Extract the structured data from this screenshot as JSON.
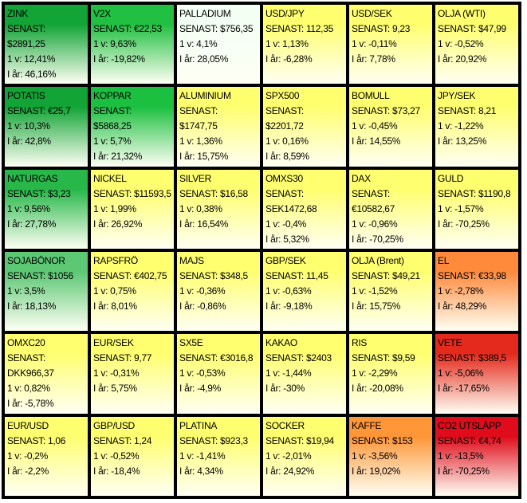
{
  "rows": [
    [
      {
        "name": "ZINK",
        "latest": "SENAST: $2891,25",
        "week": "1 v: 12,41%",
        "year": "I år: 46,16%",
        "color": "#12a436"
      },
      {
        "name": "V2X",
        "latest": "SENAST: €22,53",
        "week": "1 v: 9,63%",
        "year": "I år: -19,82%",
        "color": "#22c042"
      },
      {
        "name": "PALLADIUM",
        "latest": "SENAST: $756,35",
        "week": "1 v: 4,1%",
        "year": "I år: 28,05%",
        "color": "#f4fff4"
      },
      {
        "name": "USD/JPY",
        "latest": "SENAST: 112,35",
        "week": "1 v: 1,13%",
        "year": "I år: -6,28%",
        "color": "#ffff70"
      },
      {
        "name": "USD/SEK",
        "latest": "SENAST: 9,23",
        "week": "1 v: -0,11%",
        "year": "I år: 7,78%",
        "color": "#ffff70"
      },
      {
        "name": "OLJA (WTI)",
        "latest": "SENAST: $47,99",
        "week": "1 v: -0,52%",
        "year": "I år: 20,92%",
        "color": "#ffff70"
      }
    ],
    [
      {
        "name": "POTATIS",
        "latest": "SENAST: €25,7",
        "week": "1 v: 10,3%",
        "year": "I år: 42,8%",
        "color": "#12a436"
      },
      {
        "name": "KOPPAR",
        "latest": "SENAST: $5868,25",
        "week": "1 v: 5,7%",
        "year": "I år: 21,32%",
        "color": "#1cc040"
      },
      {
        "name": "ALUMINIUM",
        "latest": "SENAST: $1747,75",
        "week": "1 v: 1,36%",
        "year": "I år: 15,75%",
        "color": "#ffff70"
      },
      {
        "name": "SPX500",
        "latest": "SENAST: $2201,72",
        "week": "1 v: 0,16%",
        "year": "I år: 8,59%",
        "color": "#ffff70"
      },
      {
        "name": "BOMULL",
        "latest": "SENAST: $73,27",
        "week": "1 v: -0,45%",
        "year": "I år: 14,55%",
        "color": "#ffff70"
      },
      {
        "name": "JPY/SEK",
        "latest": "SENAST: 8,21",
        "week": "1 v: -1,22%",
        "year": "I år: 13,25%",
        "color": "#ffff70"
      }
    ],
    [
      {
        "name": "NATURGAS",
        "latest": "SENAST: $3,23",
        "week": "1 v: 9,56%",
        "year": "I år: 27,78%",
        "color": "#28b84a"
      },
      {
        "name": "NICKEL",
        "latest": "SENAST: $11593,5",
        "week": "1 v: 1,99%",
        "year": "I år: 26,92%",
        "color": "#ffff70"
      },
      {
        "name": "SILVER",
        "latest": "SENAST: $16,58",
        "week": "1 v: 0,38%",
        "year": "I år: 16,54%",
        "color": "#ffff70"
      },
      {
        "name": "OMXS30",
        "latest": "SENAST: SEK1472,68",
        "week": "1 v: -0,4%",
        "year": "I år: 5,32%",
        "color": "#ffff70"
      },
      {
        "name": "DAX",
        "latest": "SENAST: €10582,67",
        "week": "1 v: -0,96%",
        "year": "I år: -70,25%",
        "color": "#ffff70"
      },
      {
        "name": "GULD",
        "latest": "SENAST: $1190,8",
        "week": "1 v: -1,57%",
        "year": "I år: -70,25%",
        "color": "#ffff70"
      }
    ],
    [
      {
        "name": "SOJABÖNOR",
        "latest": "SENAST: $1056",
        "week": "1 v: 3,5%",
        "year": "I år: 18,13%",
        "color": "#5cc874"
      },
      {
        "name": "RAPSFRÖ",
        "latest": "SENAST: €402,75",
        "week": "1 v: 0,75%",
        "year": "I år: 8,01%",
        "color": "#ffff70"
      },
      {
        "name": "MAJS",
        "latest": "SENAST: $348,5",
        "week": "1 v: -0,36%",
        "year": "I år: -0,86%",
        "color": "#ffff70"
      },
      {
        "name": "GBP/SEK",
        "latest": "SENAST: 11,45",
        "week": "1 v: -0,63%",
        "year": "I år: -9,18%",
        "color": "#ffff70"
      },
      {
        "name": "OLJA (Brent)",
        "latest": "SENAST: $49,21",
        "week": "1 v: -1,52%",
        "year": "I år: 15,75%",
        "color": "#ffff70"
      },
      {
        "name": "EL",
        "latest": "SENAST: €33,98",
        "week": "1 v: -2,78%",
        "year": "I år: 48,29%",
        "color": "#ff8a3c"
      }
    ],
    [
      {
        "name": "OMXC20",
        "latest": "SENAST: DKK966,37",
        "week": "1 v: 0,82%",
        "year": "I år: -5,78%",
        "color": "#ffff70"
      },
      {
        "name": "EUR/SEK",
        "latest": "SENAST: 9,77",
        "week": "1 v: -0,31%",
        "year": "I år: 5,75%",
        "color": "#ffff70"
      },
      {
        "name": "SX5E",
        "latest": "SENAST: €3016,8",
        "week": "1 v: -0,53%",
        "year": "I år: -4,9%",
        "color": "#ffff70"
      },
      {
        "name": "KAKAO",
        "latest": "SENAST: $2403",
        "week": "1 v: -1,44%",
        "year": "I år: -30%",
        "color": "#ffff70"
      },
      {
        "name": "RIS",
        "latest": "SENAST: $9,59",
        "week": "1 v: -2,29%",
        "year": "I år: -20,08%",
        "color": "#ffff70"
      },
      {
        "name": "VETE",
        "latest": "SENAST: $389,5",
        "week": "1 v: -5,06%",
        "year": "I år: -17,65%",
        "color": "#e42a1c"
      }
    ],
    [
      {
        "name": "EUR/USD",
        "latest": "SENAST: 1,06",
        "week": "1 v: -0,2%",
        "year": "I år: -2,2%",
        "color": "#ffff70"
      },
      {
        "name": "GBP/USD",
        "latest": "SENAST: 1,24",
        "week": "1 v: -0,52%",
        "year": "I år: -18,4%",
        "color": "#ffff70"
      },
      {
        "name": "PLATINA",
        "latest": "SENAST: $923,3",
        "week": "1 v: -1,41%",
        "year": "I år: 4,34%",
        "color": "#ffff70"
      },
      {
        "name": "SOCKER",
        "latest": "SENAST: $19,94",
        "week": "1 v: -2,01%",
        "year": "I år: 24,92%",
        "color": "#ffff70"
      },
      {
        "name": "KAFFE",
        "latest": "SENAST: $153",
        "week": "1 v: -3,56%",
        "year": "I år: 19,02%",
        "color": "#ff9638"
      },
      {
        "name": "CO2 UTSLÄPP",
        "latest": "SENAST: €4,74",
        "week": "1 v: -13,5%",
        "year": "I år: -70,25%",
        "color": "#e00c1c"
      }
    ]
  ]
}
